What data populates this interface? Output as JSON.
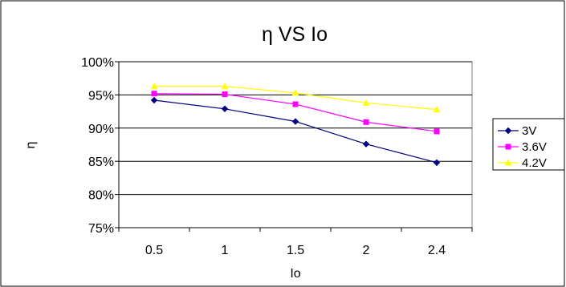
{
  "chart_data": {
    "type": "line",
    "title": "η VS Io",
    "xlabel": "Io",
    "ylabel": "η",
    "categories": [
      "0.5",
      "1",
      "1.5",
      "2",
      "2.4"
    ],
    "ylim": [
      75,
      100
    ],
    "ytick_values": [
      75,
      80,
      85,
      90,
      95,
      100
    ],
    "ytick_labels": [
      "75%",
      "80%",
      "85%",
      "90%",
      "95%",
      "100%"
    ],
    "grid": true,
    "legend_position": "right",
    "series": [
      {
        "name": "3V",
        "color": "#000080",
        "marker": "diamond",
        "values": [
          94.2,
          92.9,
          91.0,
          87.6,
          84.8
        ]
      },
      {
        "name": "3.6V",
        "color": "#ff00ff",
        "marker": "square",
        "values": [
          95.2,
          95.1,
          93.6,
          90.9,
          89.5
        ]
      },
      {
        "name": "4.2V",
        "color": "#ffff00",
        "marker": "triangle",
        "values": [
          96.3,
          96.3,
          95.3,
          93.8,
          92.8
        ]
      }
    ]
  }
}
